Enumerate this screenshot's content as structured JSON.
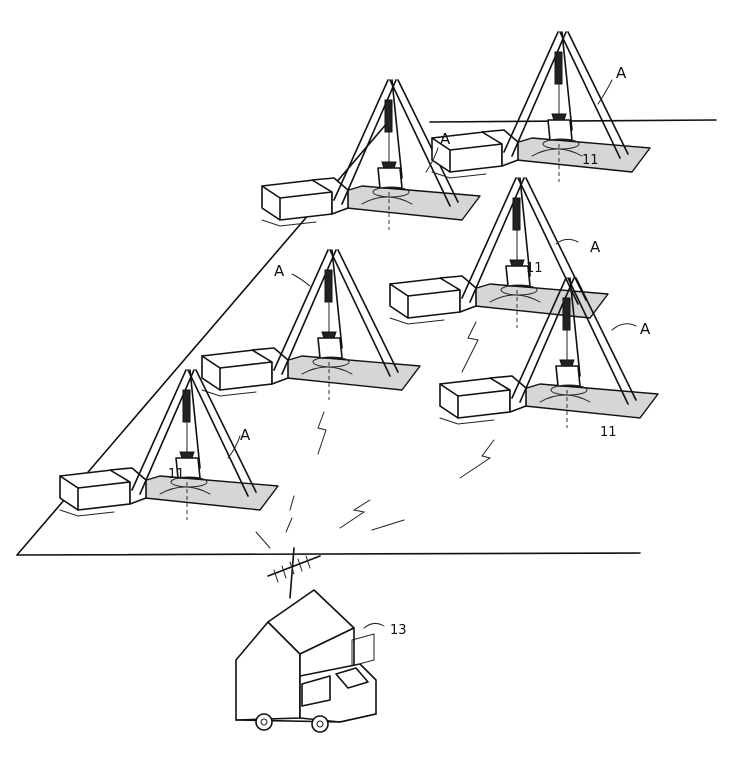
{
  "figure": {
    "rig_label": "A",
    "sensor_label": "11",
    "base_station_label": "13"
  }
}
